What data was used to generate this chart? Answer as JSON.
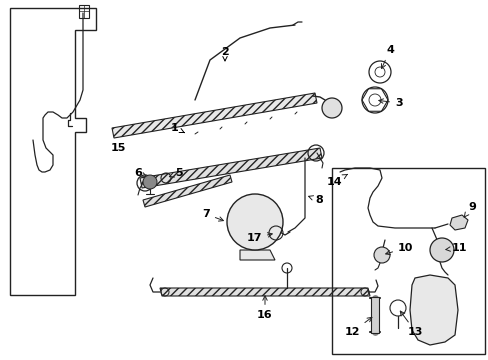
{
  "bg_color": "#ffffff",
  "line_color": "#222222",
  "label_color": "#000000",
  "figsize": [
    4.89,
    3.6
  ],
  "dpi": 100,
  "lw": 0.9
}
